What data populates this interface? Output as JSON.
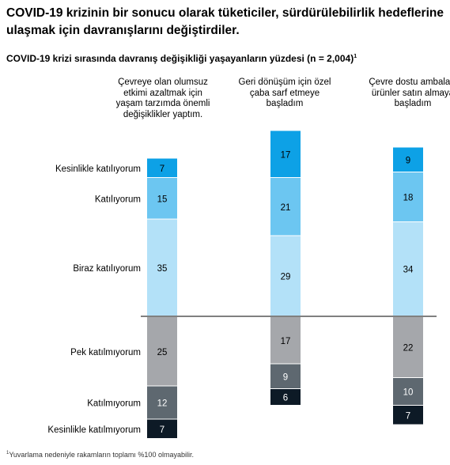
{
  "headline": "COVID-19 krizinin bir sonucu olarak tüketiciler, sürdürülebilirlik hedeflerine ulaşmak için davranışlarını değiştirdiler.",
  "subtitle": "COVID-19 krizi sırasında davranış değişikliği yaşayanların yüzdesi (n = 2,004)",
  "subtitle_mark": "1",
  "footnote_mark": "1",
  "footnote": "Yuvarlama nedeniyle rakamların toplamı %100 olmayabilir.",
  "colors": {
    "Kesinlikle katılıyorum": "#0da1e6",
    "Katılıyorum": "#6cc6f1",
    "Biraz katılıyorum": "#b3e1f8",
    "Pek katılmıyorum": "#a5a7ab",
    "Katılmıyorum": "#5e6870",
    "Kesinlikle katılmıyorum": "#0d1a26"
  },
  "chart_data": {
    "type": "bar",
    "stacked": true,
    "diverging": true,
    "categories": [
      "Çevreye olan olumsuz etkimi azaltmak için yaşam tarzımda önemli değişiklikler yaptım.",
      "Geri dönüşüm için özel çaba sarf etmeye başladım",
      "Çevre dostu ambalajlı ürünler satın almaya başladım"
    ],
    "series": [
      {
        "name": "Kesinlikle katılıyorum",
        "values": [
          7,
          17,
          9
        ],
        "side": "agree"
      },
      {
        "name": "Katılıyorum",
        "values": [
          15,
          21,
          18
        ],
        "side": "agree"
      },
      {
        "name": "Biraz katılıyorum",
        "values": [
          35,
          29,
          34
        ],
        "side": "agree"
      },
      {
        "name": "Pek katılmıyorum",
        "values": [
          25,
          17,
          22
        ],
        "side": "disagree"
      },
      {
        "name": "Katılmıyorum",
        "values": [
          12,
          9,
          10
        ],
        "side": "disagree"
      },
      {
        "name": "Kesinlikle katılmıyorum",
        "values": [
          7,
          6,
          7
        ],
        "side": "disagree"
      }
    ]
  }
}
